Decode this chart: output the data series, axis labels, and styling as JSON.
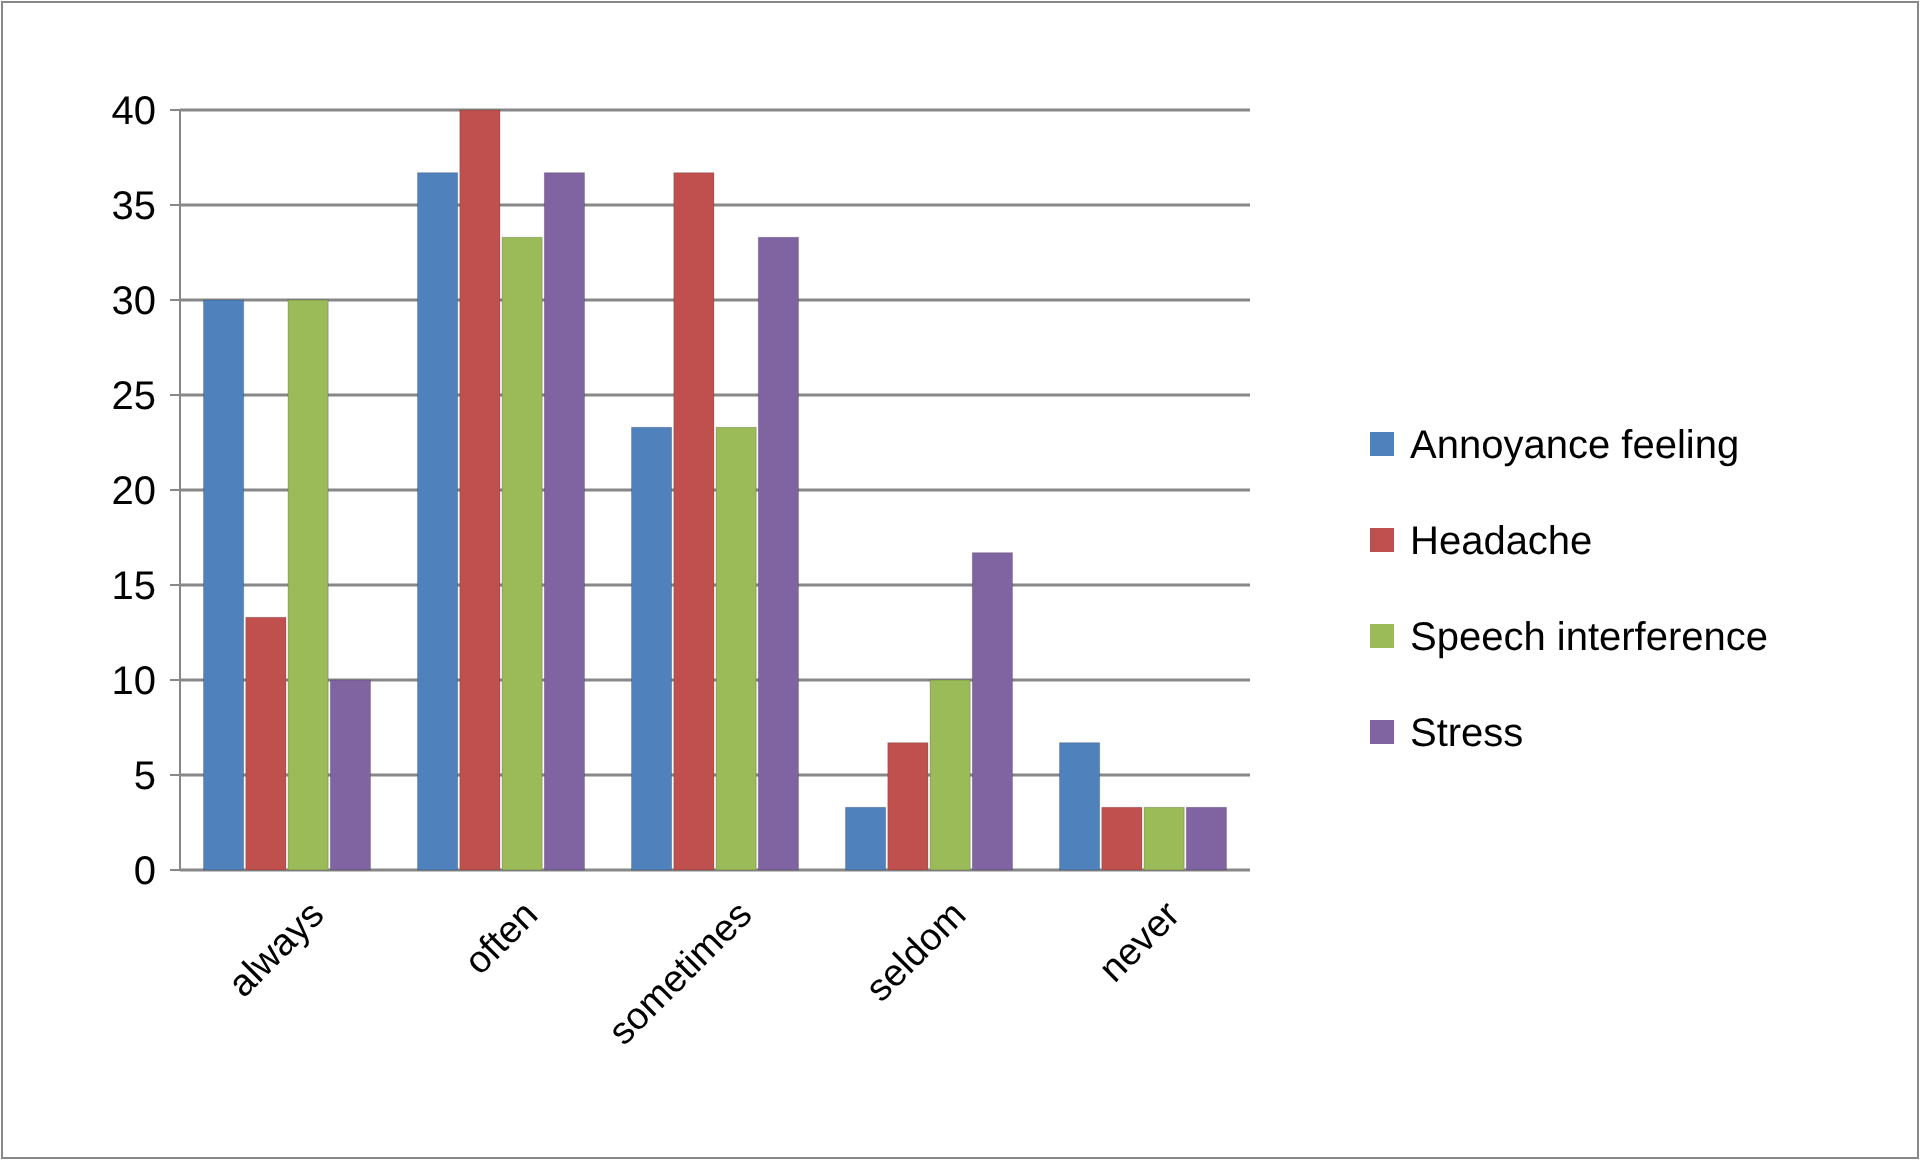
{
  "chart_data": {
    "type": "bar",
    "categories": [
      "always",
      "often",
      "sometimes",
      "seldom",
      "never"
    ],
    "series": [
      {
        "name": "Annoyance feeling",
        "color": "#4f81bd",
        "values": [
          30,
          36.7,
          23.3,
          3.3,
          6.7
        ]
      },
      {
        "name": "Headache",
        "color": "#c0504d",
        "values": [
          13.3,
          40,
          36.7,
          6.7,
          3.3
        ]
      },
      {
        "name": "Speech interference",
        "color": "#9bbb59",
        "values": [
          30,
          33.3,
          23.3,
          10,
          3.3
        ]
      },
      {
        "name": "Stress",
        "color": "#8064a2",
        "values": [
          10,
          36.7,
          33.3,
          16.7,
          3.3
        ]
      }
    ],
    "ylim": [
      0,
      40
    ],
    "yticks": [
      0,
      5,
      10,
      15,
      20,
      25,
      30,
      35,
      40
    ],
    "grid": "y",
    "legend": "right"
  }
}
